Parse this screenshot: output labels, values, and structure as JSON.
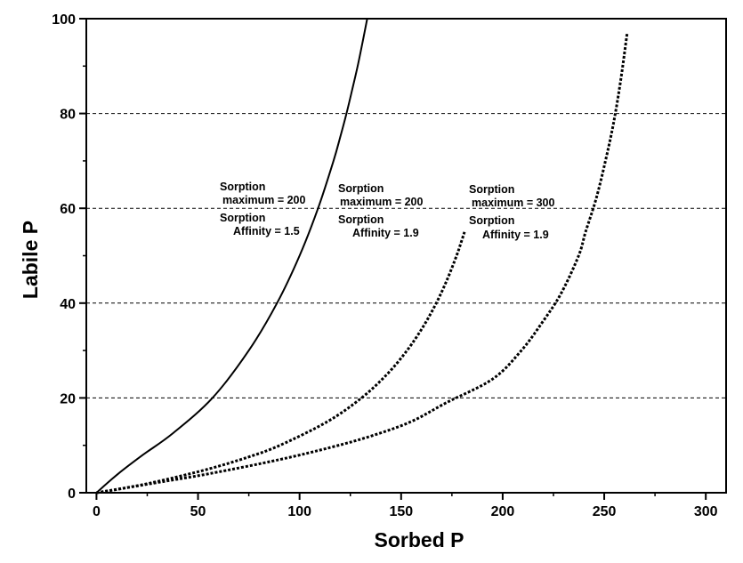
{
  "chart_data": {
    "type": "line",
    "title": "",
    "xlabel": "Sorbed P",
    "ylabel": "Labile P",
    "xlim": [
      -5,
      310
    ],
    "ylim": [
      0,
      100
    ],
    "x_ticks": [
      0,
      50,
      100,
      150,
      200,
      250,
      300
    ],
    "y_ticks": [
      0,
      20,
      40,
      60,
      80,
      100
    ],
    "grid": "horizontal dashed gridlines at y = 20, 40, 60, 80",
    "legend": "none",
    "series": [
      {
        "style": "solid",
        "color": "#000000",
        "x": [
          0,
          10.7,
          22.9,
          37.5,
          57.1,
          75,
          88.9,
          100,
          109.1,
          116.7,
          120,
          123.1,
          125.9,
          128.6,
          131,
          133.3
        ],
        "y": [
          0,
          4,
          8,
          12.5,
          20,
          30,
          40,
          50,
          60,
          70,
          75,
          80,
          85,
          90,
          95,
          100
        ]
      },
      {
        "style": "dashed",
        "color": "#000000",
        "x": [
          0,
          14.1,
          31.3,
          55.1,
          74.6,
          90.3,
          113.7,
          130.5,
          143.1,
          152.9,
          160.8,
          167.3,
          172.7,
          177.3,
          179.3,
          181.2
        ],
        "y": [
          0,
          1,
          2.5,
          5,
          7.5,
          10,
          15,
          20,
          25,
          30,
          35,
          40,
          45,
          50,
          52.5,
          55
        ]
      },
      {
        "style": "dashed",
        "color": "#000000",
        "x": [
          0,
          27.9,
          55.3,
          90.2,
          115.6,
          135.5,
          154.9,
          172.3,
          195.1,
          209.2,
          219.6,
          228.7,
          237.4,
          240.8,
          246,
          250.6,
          254.6,
          258.1,
          261.3
        ],
        "y": [
          0,
          2,
          4,
          7,
          9.6,
          12,
          15,
          19,
          24,
          30,
          36,
          42,
          50,
          55,
          62,
          70,
          78,
          87,
          97
        ]
      }
    ],
    "annotations": [
      {
        "line1": "Sorption",
        "line2": "maximum = 200",
        "line3": "Sorption",
        "line4": "Affinity = 1.5"
      },
      {
        "line1": "Sorption",
        "line2": "maximum = 200",
        "line3": "Sorption",
        "line4": "Affinity = 1.9"
      },
      {
        "line1": "Sorption",
        "line2": "maximum = 300",
        "line3": "Sorption",
        "line4": "Affinity = 1.9"
      }
    ]
  }
}
